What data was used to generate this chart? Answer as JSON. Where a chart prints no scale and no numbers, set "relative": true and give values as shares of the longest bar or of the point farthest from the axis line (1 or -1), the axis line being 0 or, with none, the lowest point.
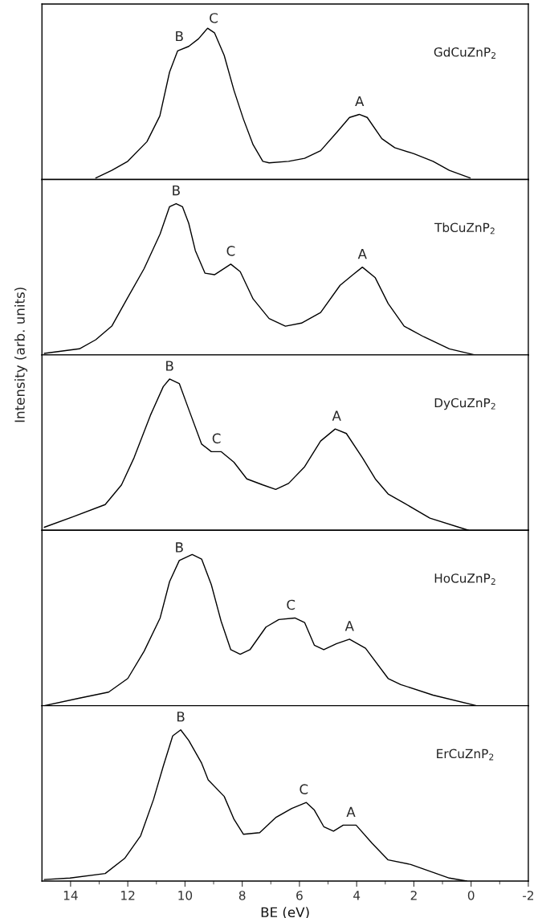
{
  "chart_data": [
    {
      "type": "line",
      "relative": true,
      "xlim": [
        15,
        -2
      ],
      "tick_labels": false,
      "line_style": "solid",
      "marker": "none",
      "x": [
        13.12,
        12.56,
        12.0,
        11.33,
        10.88,
        10.54,
        10.26,
        9.87,
        9.53,
        9.21,
        8.97,
        8.63,
        8.29,
        7.96,
        7.62,
        7.28,
        7.06,
        6.38,
        5.82,
        5.26,
        4.7,
        4.25,
        3.91,
        3.63,
        3.12,
        2.67,
        2.0,
        1.33,
        0.76,
        0.03
      ],
      "series": [
        {
          "color": "#000000",
          "values": [
            0.01,
            0.06,
            0.12,
            0.25,
            0.42,
            0.71,
            0.85,
            0.88,
            0.93,
            1.0,
            0.97,
            0.82,
            0.59,
            0.4,
            0.23,
            0.12,
            0.11,
            0.12,
            0.14,
            0.19,
            0.31,
            0.41,
            0.43,
            0.41,
            0.27,
            0.21,
            0.17,
            0.12,
            0.06,
            0.01
          ]
        }
      ],
      "annotations": [
        "GdCuZnP$_{2}$",
        {
          "text": "B",
          "x": 10.2,
          "y": 0.86
        },
        {
          "text": "C",
          "x": 9.0,
          "y": 0.98
        },
        {
          "text": "A",
          "x": 3.9,
          "y": 0.43
        }
      ]
    },
    {
      "type": "line",
      "relative": true,
      "xlim": [
        15,
        -2
      ],
      "tick_labels": false,
      "line_style": "solid",
      "marker": "none",
      "x": [
        14.92,
        13.69,
        13.12,
        12.56,
        12.0,
        11.43,
        10.87,
        10.54,
        10.31,
        10.09,
        9.87,
        9.64,
        9.3,
        8.97,
        8.4,
        8.07,
        7.62,
        7.06,
        6.49,
        5.93,
        5.26,
        4.58,
        4.13,
        3.8,
        3.35,
        2.9,
        2.34,
        1.66,
        0.76,
        -0.13
      ],
      "series": [
        {
          "color": "#000000",
          "values": [
            0.01,
            0.04,
            0.1,
            0.19,
            0.38,
            0.57,
            0.8,
            0.98,
            1.0,
            0.98,
            0.87,
            0.69,
            0.54,
            0.53,
            0.6,
            0.55,
            0.37,
            0.24,
            0.19,
            0.21,
            0.28,
            0.46,
            0.53,
            0.58,
            0.51,
            0.34,
            0.19,
            0.12,
            0.04,
            0.0
          ]
        }
      ],
      "annotations": [
        "TbCuZnP$_{2}$",
        {
          "text": "B",
          "x": 10.31,
          "y": 1.0
        },
        {
          "text": "C",
          "x": 8.4,
          "y": 0.6
        },
        {
          "text": "A",
          "x": 3.8,
          "y": 0.58
        }
      ]
    },
    {
      "type": "line",
      "relative": true,
      "xlim": [
        15,
        -2
      ],
      "tick_labels": false,
      "line_style": "solid",
      "marker": "none",
      "ylabel": "Intensity (arb. units)",
      "x": [
        14.92,
        13.91,
        12.79,
        12.22,
        11.78,
        11.21,
        10.76,
        10.54,
        10.2,
        9.87,
        9.42,
        9.08,
        8.74,
        8.29,
        7.84,
        7.28,
        6.83,
        6.38,
        5.82,
        5.26,
        4.75,
        4.36,
        3.8,
        3.35,
        2.9,
        2.34,
        1.44,
        0.09
      ],
      "series": [
        {
          "color": "#000000",
          "values": [
            0.02,
            0.09,
            0.17,
            0.3,
            0.48,
            0.76,
            0.95,
            1.0,
            0.97,
            0.8,
            0.57,
            0.52,
            0.52,
            0.45,
            0.34,
            0.3,
            0.27,
            0.31,
            0.42,
            0.59,
            0.67,
            0.64,
            0.48,
            0.34,
            0.24,
            0.18,
            0.08,
            0.0
          ]
        }
      ],
      "annotations": [
        "DyCuZnP$_{2}$",
        {
          "text": "B",
          "x": 10.54,
          "y": 1.0
        },
        {
          "text": "C",
          "x": 8.9,
          "y": 0.52
        },
        {
          "text": "A",
          "x": 4.7,
          "y": 0.67
        }
      ]
    },
    {
      "type": "line",
      "relative": true,
      "xlim": [
        15,
        -2
      ],
      "tick_labels": false,
      "line_style": "solid",
      "marker": "none",
      "x": [
        14.92,
        13.69,
        12.67,
        12.0,
        11.43,
        10.87,
        10.54,
        10.2,
        9.75,
        9.42,
        9.08,
        8.74,
        8.4,
        8.07,
        7.73,
        7.17,
        6.72,
        6.16,
        5.82,
        5.48,
        5.15,
        4.7,
        4.25,
        3.69,
        2.9,
        2.46,
        1.33,
        -0.19
      ],
      "series": [
        {
          "color": "#000000",
          "values": [
            0.0,
            0.05,
            0.09,
            0.18,
            0.36,
            0.58,
            0.82,
            0.96,
            1.0,
            0.97,
            0.8,
            0.56,
            0.37,
            0.34,
            0.37,
            0.52,
            0.57,
            0.58,
            0.55,
            0.4,
            0.37,
            0.41,
            0.44,
            0.38,
            0.18,
            0.14,
            0.07,
            0.0
          ]
        }
      ],
      "annotations": [
        "HoCuZnP$_{2}$",
        {
          "text": "B",
          "x": 10.2,
          "y": 0.96
        },
        {
          "text": "C",
          "x": 6.3,
          "y": 0.58
        },
        {
          "text": "A",
          "x": 4.25,
          "y": 0.44
        }
      ]
    },
    {
      "type": "line",
      "relative": true,
      "xlim": [
        15,
        -2
      ],
      "tick_labels": "x",
      "line_style": "solid",
      "marker": "none",
      "xlabel": "BE (eV)",
      "xticks": [
        14,
        {
          "value": 13,
          "label": null
        },
        12,
        {
          "value": 11,
          "label": null
        },
        10,
        {
          "value": 9,
          "label": null
        },
        8,
        {
          "value": 7,
          "label": null
        },
        6,
        {
          "value": 5,
          "label": null
        },
        4,
        {
          "value": 3,
          "label": null
        },
        2,
        {
          "value": 1,
          "label": null
        },
        0,
        {
          "value": -1,
          "label": null
        },
        -2
      ],
      "x": [
        14.92,
        14.02,
        12.79,
        12.11,
        11.55,
        11.1,
        10.76,
        10.43,
        10.15,
        9.87,
        9.42,
        9.19,
        8.63,
        8.29,
        7.96,
        7.39,
        6.83,
        6.27,
        5.76,
        5.48,
        5.15,
        4.81,
        4.47,
        4.02,
        3.46,
        2.9,
        2.11,
        0.76,
        0.15
      ],
      "series": [
        {
          "color": "#000000",
          "values": [
            0.01,
            0.02,
            0.05,
            0.15,
            0.3,
            0.54,
            0.76,
            0.96,
            1.0,
            0.93,
            0.78,
            0.67,
            0.56,
            0.41,
            0.31,
            0.32,
            0.42,
            0.48,
            0.52,
            0.47,
            0.36,
            0.33,
            0.37,
            0.37,
            0.25,
            0.14,
            0.11,
            0.02,
            0.0
          ]
        }
      ],
      "annotations": [
        "ErCuZnP$_{2}$",
        {
          "text": "B",
          "x": 10.15,
          "y": 1.0
        },
        {
          "text": "C",
          "x": 5.85,
          "y": 0.52
        },
        {
          "text": "A",
          "x": 4.2,
          "y": 0.37
        }
      ]
    }
  ]
}
